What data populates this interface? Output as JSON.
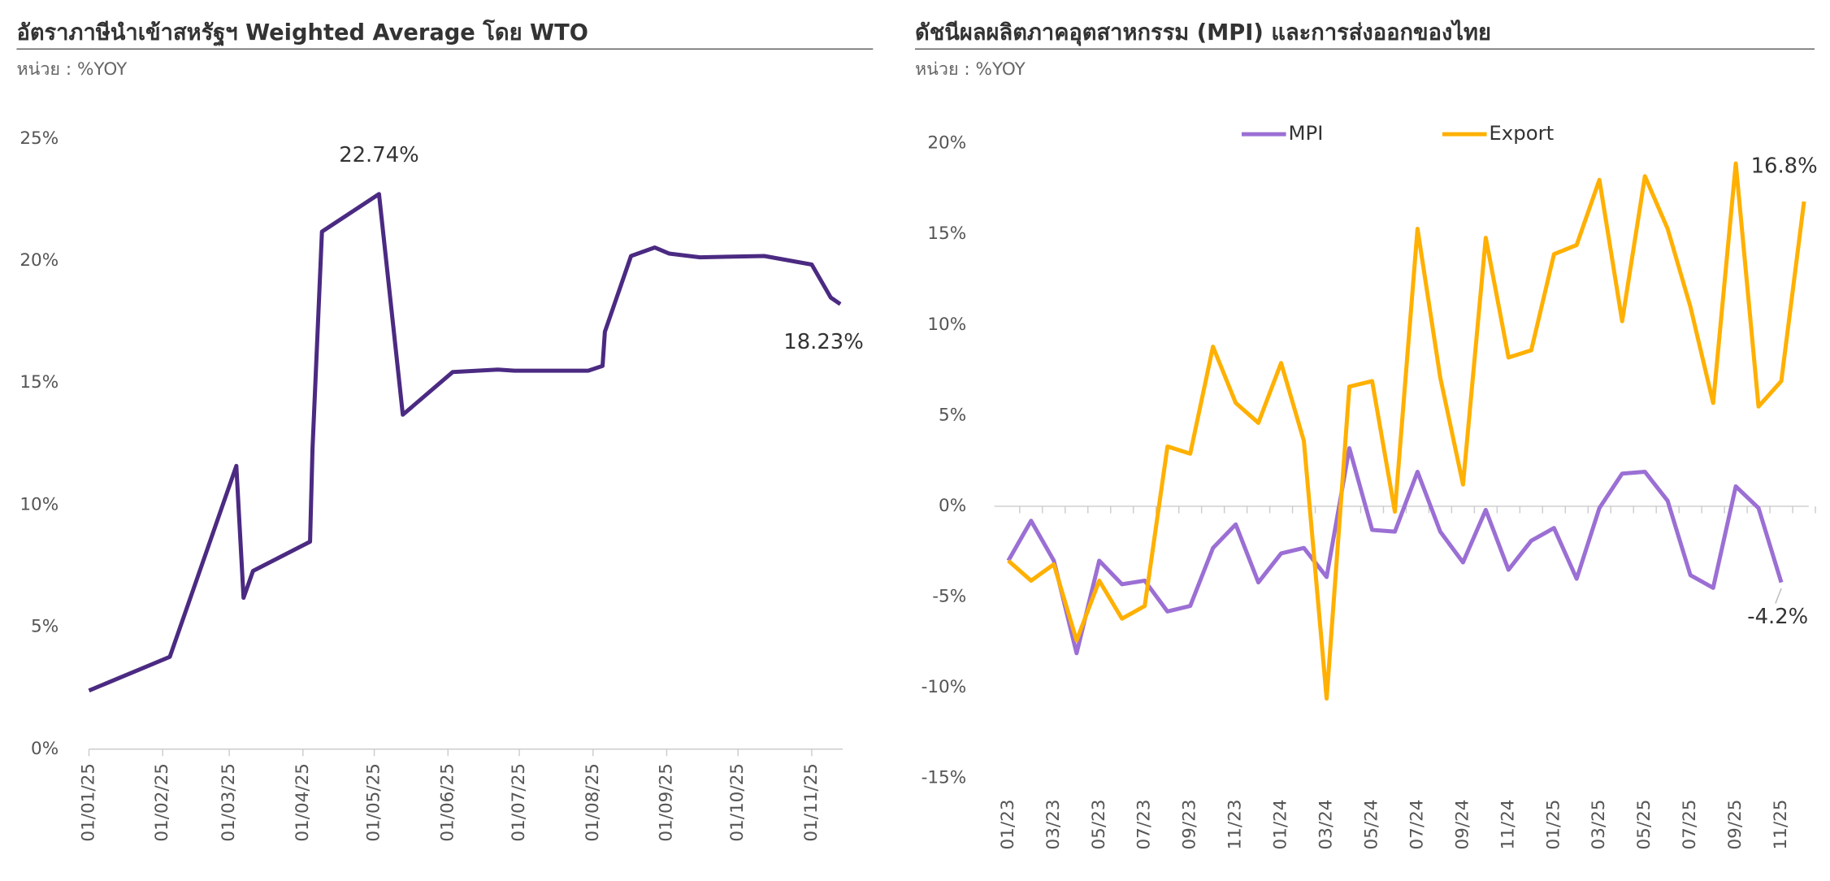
{
  "chart_data": [
    {
      "type": "line",
      "title": "อัตราภาษีนำเข้าสหรัฐฯ Weighted Average โดย WTO",
      "subtitle": "หน่วย : %YOY",
      "color": "#4b2a82",
      "x": [
        "2025-01-01",
        "2025-02-04",
        "2025-03-04",
        "2025-03-07",
        "2025-03-11",
        "2025-04-04",
        "2025-04-05",
        "2025-04-09",
        "2025-05-03",
        "2025-05-13",
        "2025-06-03",
        "2025-06-22",
        "2025-06-29",
        "2025-07-30",
        "2025-08-05",
        "2025-08-06",
        "2025-08-17",
        "2025-08-27",
        "2025-09-02",
        "2025-09-15",
        "2025-10-12",
        "2025-11-01",
        "2025-11-09",
        "2025-11-13"
      ],
      "values": [
        2.4,
        3.78,
        11.6,
        6.2,
        7.3,
        8.5,
        12.3,
        21.2,
        22.74,
        13.7,
        15.45,
        15.55,
        15.5,
        15.5,
        15.7,
        17.1,
        20.2,
        20.55,
        20.3,
        20.15,
        20.2,
        19.85,
        18.5,
        18.23
      ],
      "value_labels": [
        null,
        null,
        null,
        null,
        null,
        null,
        null,
        null,
        "22.74%",
        null,
        null,
        null,
        null,
        null,
        null,
        null,
        null,
        null,
        null,
        null,
        null,
        null,
        null,
        "18.23%"
      ],
      "xlim": [
        "2025-01-01",
        "2025-11-14"
      ],
      "xticks": [
        {
          "value": "2025-01-01",
          "label": "01/01/25"
        },
        {
          "value": "2025-02-01",
          "label": "01/02/25"
        },
        {
          "value": "2025-03-01",
          "label": "01/03/25"
        },
        {
          "value": "2025-04-01",
          "label": "01/04/25"
        },
        {
          "value": "2025-05-01",
          "label": "01/05/25"
        },
        {
          "value": "2025-06-01",
          "label": "01/06/25"
        },
        {
          "value": "2025-07-01",
          "label": "01/07/25"
        },
        {
          "value": "2025-08-01",
          "label": "01/08/25"
        },
        {
          "value": "2025-09-01",
          "label": "01/09/25"
        },
        {
          "value": "2025-10-01",
          "label": "01/10/25"
        },
        {
          "value": "2025-11-01",
          "label": "01/11/25"
        }
      ],
      "ylim": [
        0,
        25
      ],
      "yticks": [
        {
          "value": 0,
          "label": "0%"
        },
        {
          "value": 5,
          "label": "5%"
        },
        {
          "value": 10,
          "label": "10%"
        },
        {
          "value": 15,
          "label": "15%"
        },
        {
          "value": 20,
          "label": "20%"
        },
        {
          "value": 25,
          "label": "25%"
        }
      ]
    },
    {
      "type": "line",
      "title": "ดัชนีผลผลิตภาคอุตสาหกรรม (MPI) และการส่งออกของไทย",
      "subtitle": "หน่วย : %YOY",
      "legend": "top",
      "categories": [
        "01/23",
        null,
        "03/23",
        null,
        "05/23",
        null,
        "07/23",
        null,
        "09/23",
        null,
        "11/23",
        null,
        "01/24",
        null,
        "03/24",
        null,
        "05/24",
        null,
        "07/24",
        null,
        "09/24",
        null,
        "11/24",
        null,
        "01/25",
        null,
        "03/25",
        null,
        "05/25",
        null,
        "07/25",
        null,
        "09/25",
        null,
        "11/25",
        null
      ],
      "series": [
        {
          "name": "MPI",
          "color": "#9b6fd4",
          "values": [
            -3.0,
            -0.8,
            -3.0,
            -8.1,
            -3.0,
            -4.3,
            -4.1,
            -5.8,
            -5.5,
            -2.3,
            -1.0,
            -4.2,
            -2.6,
            -2.3,
            -3.9,
            3.2,
            -1.3,
            -1.4,
            1.9,
            -1.4,
            -3.1,
            -0.2,
            -3.5,
            -1.9,
            -1.2,
            -4.0,
            -0.1,
            1.8,
            1.9,
            0.3,
            -3.8,
            -4.5,
            1.1,
            -0.1,
            -4.2,
            null
          ],
          "value_labels": [
            null,
            null,
            null,
            null,
            null,
            null,
            null,
            null,
            null,
            null,
            null,
            null,
            null,
            null,
            null,
            null,
            null,
            null,
            null,
            null,
            null,
            null,
            null,
            null,
            null,
            null,
            null,
            null,
            null,
            null,
            null,
            null,
            null,
            null,
            "-4.2%",
            null
          ]
        },
        {
          "name": "Export",
          "color": "#ffb000",
          "values": [
            -3.0,
            -4.1,
            -3.2,
            -7.4,
            -4.1,
            -6.2,
            -5.5,
            3.3,
            2.9,
            8.8,
            5.7,
            4.6,
            7.9,
            3.6,
            -10.6,
            6.6,
            6.9,
            -0.3,
            15.3,
            7.1,
            1.2,
            14.8,
            8.2,
            8.6,
            13.9,
            14.4,
            18.0,
            10.2,
            18.2,
            15.3,
            11.0,
            5.7,
            18.9,
            5.5,
            6.9,
            16.8
          ],
          "value_labels": [
            null,
            null,
            null,
            null,
            null,
            null,
            null,
            null,
            null,
            null,
            null,
            null,
            null,
            null,
            null,
            null,
            null,
            null,
            null,
            null,
            null,
            null,
            null,
            null,
            null,
            null,
            null,
            null,
            null,
            null,
            null,
            null,
            null,
            null,
            null,
            "16.8%"
          ]
        }
      ],
      "ylim": [
        -15,
        20
      ],
      "yticks": [
        {
          "value": -15,
          "label": "-15%"
        },
        {
          "value": -10,
          "label": "-10%"
        },
        {
          "value": -5,
          "label": "-5%"
        },
        {
          "value": 0,
          "label": "0%"
        },
        {
          "value": 5,
          "label": "5%"
        },
        {
          "value": 10,
          "label": "10%"
        },
        {
          "value": 15,
          "label": "15%"
        },
        {
          "value": 20,
          "label": "20%"
        }
      ]
    }
  ]
}
